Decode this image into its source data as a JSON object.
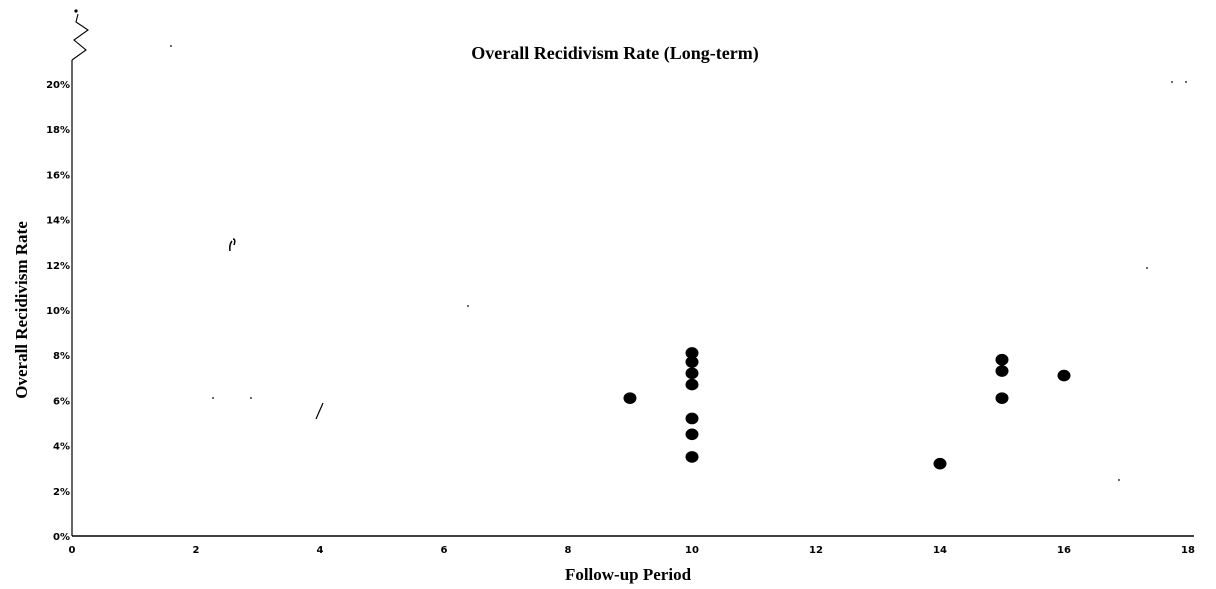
{
  "chart_data": {
    "type": "scatter",
    "title": "Overall Recidivism Rate (Long-term)",
    "xlabel": "Follow-up Period",
    "ylabel": "Overall Recidivism Rate",
    "xlim": [
      0,
      18
    ],
    "ylim": [
      0,
      20
    ],
    "x_ticks": [
      "0",
      "2",
      "4",
      "6",
      "8",
      "10",
      "12",
      "14",
      "16",
      "18"
    ],
    "y_ticks": [
      "0%",
      "2%",
      "4%",
      "6%",
      "8%",
      "10%",
      "12%",
      "14%",
      "16%",
      "18%",
      "20%"
    ],
    "grid": false,
    "legend": "none",
    "marker_color": "#000000",
    "series": [
      {
        "points": [
          {
            "x": 9,
            "y": 6.1
          },
          {
            "x": 10,
            "y": 8.1
          },
          {
            "x": 10,
            "y": 7.7
          },
          {
            "x": 10,
            "y": 7.2
          },
          {
            "x": 10,
            "y": 6.7
          },
          {
            "x": 10,
            "y": 5.2
          },
          {
            "x": 10,
            "y": 4.5
          },
          {
            "x": 10,
            "y": 3.5
          },
          {
            "x": 14,
            "y": 3.2
          },
          {
            "x": 15,
            "y": 7.8
          },
          {
            "x": 15,
            "y": 7.3
          },
          {
            "x": 15,
            "y": 6.1
          },
          {
            "x": 16,
            "y": 7.1
          }
        ]
      }
    ]
  }
}
